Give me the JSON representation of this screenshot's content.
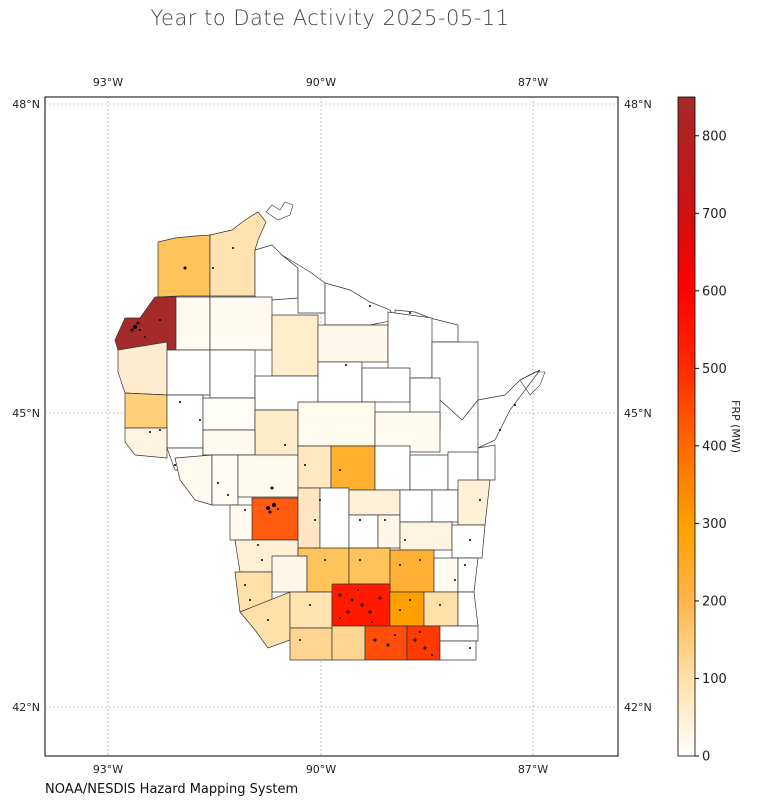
{
  "title": "Year to Date Activity 2025-05-11",
  "source": "NOAA/NESDIS Hazard Mapping System",
  "colorbar": {
    "label": "FRP (MW)",
    "min": 0,
    "max": 850,
    "ticks": [
      "0",
      "100",
      "200",
      "300",
      "400",
      "500",
      "600",
      "700",
      "800"
    ],
    "colors": [
      "#ffffff",
      "#ffe0a8",
      "#ffb347",
      "#ffa000",
      "#ff6a00",
      "#ff2a00",
      "#ff0000",
      "#d01010",
      "#a52a2a"
    ]
  },
  "axes": {
    "lon_labels_top": [
      "93°W",
      "90°W",
      "87°W"
    ],
    "lon_labels_bottom": [
      "93°W",
      "90°W",
      "87°W"
    ],
    "lat_labels_left": [
      "48°N",
      "45°N",
      "42°N"
    ],
    "lat_labels_right": [
      "48°N",
      "45°N",
      "42°N"
    ],
    "lon_range": [
      -93.9,
      -85.8
    ],
    "lat_range": [
      41.5,
      48.1
    ],
    "gridlines": true
  },
  "map": {
    "region": "Wisconsin",
    "fill_scale": "FRP (MW)",
    "marker": "fire detections (black dots)"
  }
}
